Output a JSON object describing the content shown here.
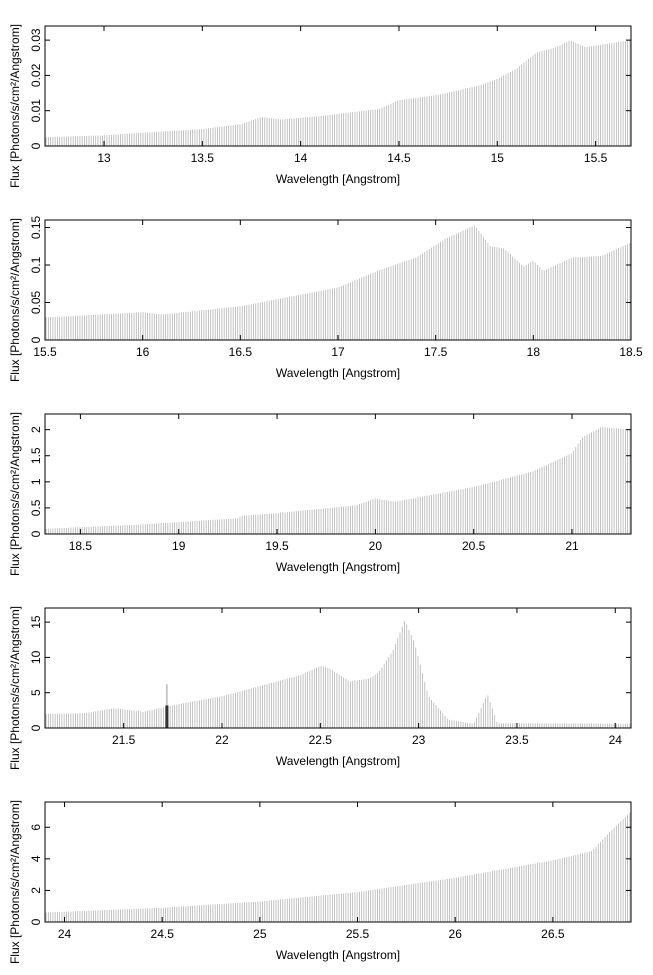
{
  "chart_data": [
    {
      "type": "bar",
      "xlabel": "Wavelength [Angstrom]",
      "ylabel": "Flux [Photons/s/cm²/Angstrom]",
      "xlim": [
        12.7,
        15.68
      ],
      "ylim": [
        0,
        0.034
      ],
      "xticks": [
        "13",
        "13.5",
        "14",
        "14.5",
        "15",
        "15.5"
      ],
      "yticks": [
        "0",
        "0.01",
        "0.02",
        "0.03"
      ],
      "grid": false,
      "bar_color": "#b4b4b4",
      "profile": [
        [
          12.7,
          0.0025
        ],
        [
          13.0,
          0.003
        ],
        [
          13.2,
          0.0038
        ],
        [
          13.5,
          0.0048
        ],
        [
          13.7,
          0.0062
        ],
        [
          13.8,
          0.0082
        ],
        [
          13.9,
          0.0075
        ],
        [
          14.1,
          0.0085
        ],
        [
          14.4,
          0.0105
        ],
        [
          14.5,
          0.013
        ],
        [
          14.7,
          0.0145
        ],
        [
          14.9,
          0.017
        ],
        [
          15.0,
          0.019
        ],
        [
          15.1,
          0.022
        ],
        [
          15.2,
          0.0265
        ],
        [
          15.3,
          0.028
        ],
        [
          15.37,
          0.03
        ],
        [
          15.45,
          0.028
        ],
        [
          15.68,
          0.03
        ]
      ]
    },
    {
      "type": "bar",
      "xlabel": "Wavelength [Angstrom]",
      "ylabel": "Flux [Photons/s/cm²/Angstrom]",
      "xlim": [
        15.5,
        18.5
      ],
      "ylim": [
        0,
        0.16
      ],
      "xticks": [
        "15.5",
        "16",
        "16.5",
        "17",
        "17.5",
        "18",
        "18.5"
      ],
      "yticks": [
        "0",
        "0.05",
        "0.1",
        "0.15"
      ],
      "grid": false,
      "bar_color": "#b4b4b4",
      "profile": [
        [
          15.5,
          0.03
        ],
        [
          16.0,
          0.037
        ],
        [
          16.1,
          0.034
        ],
        [
          16.5,
          0.045
        ],
        [
          17.0,
          0.07
        ],
        [
          17.2,
          0.092
        ],
        [
          17.4,
          0.11
        ],
        [
          17.55,
          0.135
        ],
        [
          17.7,
          0.153
        ],
        [
          17.78,
          0.125
        ],
        [
          17.85,
          0.122
        ],
        [
          17.95,
          0.098
        ],
        [
          18.0,
          0.106
        ],
        [
          18.05,
          0.092
        ],
        [
          18.2,
          0.11
        ],
        [
          18.35,
          0.112
        ],
        [
          18.5,
          0.13
        ]
      ]
    },
    {
      "type": "bar",
      "xlabel": "Wavelength [Angstrom]",
      "ylabel": "Flux [Photons/s/cm²/Angstrom]",
      "xlim": [
        18.32,
        21.3
      ],
      "ylim": [
        0,
        2.3
      ],
      "xticks": [
        "18.5",
        "19",
        "19.5",
        "20",
        "20.5",
        "21"
      ],
      "yticks": [
        "0",
        "0.5",
        "1",
        "1.5",
        "2"
      ],
      "grid": false,
      "bar_color": "#b4b4b4",
      "profile": [
        [
          18.32,
          0.1
        ],
        [
          18.8,
          0.18
        ],
        [
          19.3,
          0.3
        ],
        [
          19.32,
          0.35
        ],
        [
          19.5,
          0.4
        ],
        [
          19.9,
          0.55
        ],
        [
          20.0,
          0.68
        ],
        [
          20.1,
          0.62
        ],
        [
          20.5,
          0.9
        ],
        [
          20.8,
          1.2
        ],
        [
          21.0,
          1.55
        ],
        [
          21.05,
          1.85
        ],
        [
          21.15,
          2.05
        ],
        [
          21.3,
          2.0
        ]
      ]
    },
    {
      "type": "bar",
      "xlabel": "Wavelength [Angstrom]",
      "ylabel": "Flux [Photons/s/cm²/Angstrom]",
      "xlim": [
        21.1,
        24.08
      ],
      "ylim": [
        0,
        17
      ],
      "xticks": [
        "21.5",
        "22",
        "22.5",
        "23",
        "23.5",
        "24"
      ],
      "yticks": [
        "0",
        "5",
        "10",
        "15"
      ],
      "grid": false,
      "bar_color": "#b4b4b4",
      "spike": {
        "x": 21.72,
        "value": 6.2,
        "block": 3.2,
        "color": "#333333"
      },
      "profile": [
        [
          21.1,
          2.0
        ],
        [
          21.3,
          2.1
        ],
        [
          21.45,
          2.8
        ],
        [
          21.6,
          2.3
        ],
        [
          21.8,
          3.5
        ],
        [
          22.0,
          4.5
        ],
        [
          22.2,
          6.0
        ],
        [
          22.4,
          7.5
        ],
        [
          22.5,
          8.8
        ],
        [
          22.55,
          8.4
        ],
        [
          22.65,
          6.6
        ],
        [
          22.75,
          7.0
        ],
        [
          22.8,
          8.0
        ],
        [
          22.87,
          11.0
        ],
        [
          22.93,
          15.3
        ],
        [
          22.98,
          12.0
        ],
        [
          23.05,
          4.5
        ],
        [
          23.15,
          1.2
        ],
        [
          23.28,
          0.6
        ],
        [
          23.35,
          4.8
        ],
        [
          23.4,
          0.7
        ],
        [
          24.08,
          0.6
        ]
      ]
    },
    {
      "type": "bar",
      "xlabel": "Wavelength [Angstrom]",
      "ylabel": "Flux [Photons/s/cm²/Angstrom]",
      "xlim": [
        23.9,
        26.9
      ],
      "ylim": [
        0,
        7.6
      ],
      "xticks": [
        "24",
        "24.5",
        "25",
        "25.5",
        "26",
        "26.5"
      ],
      "yticks": [
        "0",
        "2",
        "4",
        "6"
      ],
      "grid": false,
      "bar_color": "#b4b4b4",
      "profile": [
        [
          23.9,
          0.6
        ],
        [
          24.5,
          0.9
        ],
        [
          25.0,
          1.3
        ],
        [
          25.5,
          1.9
        ],
        [
          26.0,
          2.8
        ],
        [
          26.5,
          3.9
        ],
        [
          26.7,
          4.5
        ],
        [
          26.8,
          5.8
        ],
        [
          26.9,
          7.0
        ]
      ]
    }
  ]
}
